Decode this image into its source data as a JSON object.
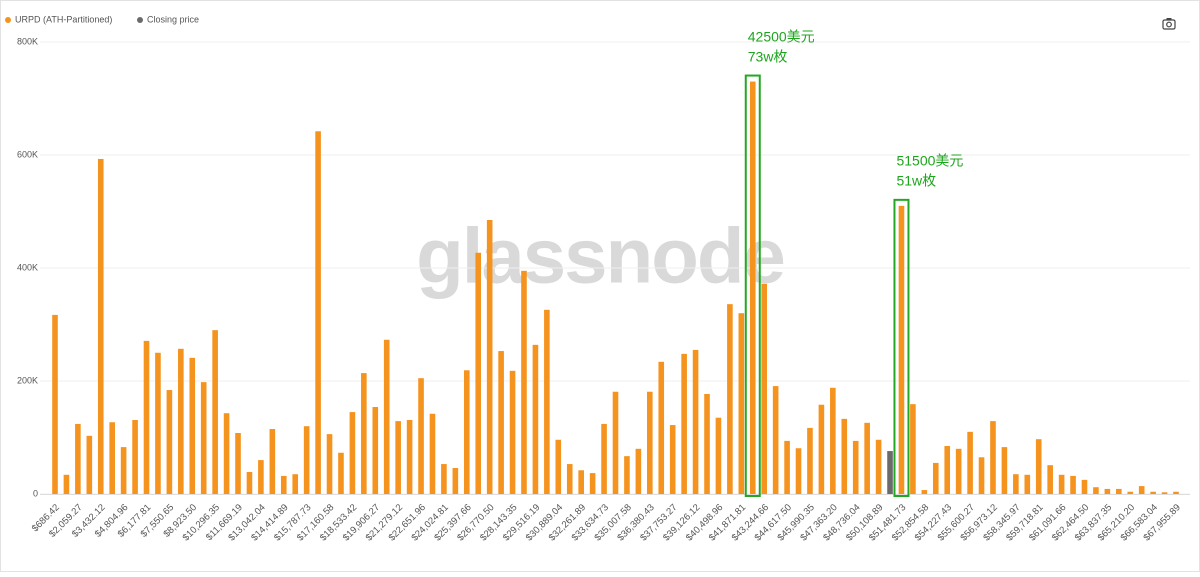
{
  "chart_data": {
    "type": "bar",
    "categories": [
      "$686.42",
      null,
      "$2,059.27",
      null,
      "$3,432.12",
      null,
      "$4,804.96",
      null,
      "$6,177.81",
      null,
      "$7,550.65",
      null,
      "$8,923.50",
      null,
      "$10,296.35",
      null,
      "$11,669.19",
      null,
      "$13,042.04",
      null,
      "$14,414.89",
      null,
      "$15,787.73",
      null,
      "$17,160.58",
      null,
      "$18,533.42",
      null,
      "$19,906.27",
      null,
      "$21,279.12",
      null,
      "$22,651.96",
      null,
      "$24,024.81",
      null,
      "$25,397.66",
      null,
      "$26,770.50",
      null,
      "$28,143.35",
      null,
      "$29,516.19",
      null,
      "$30,889.04",
      null,
      "$32,261.89",
      null,
      "$33,634.73",
      null,
      "$35,007.58",
      null,
      "$36,380.43",
      null,
      "$37,753.27",
      null,
      "$39,126.12",
      null,
      "$40,498.96",
      null,
      "$41,871.81",
      null,
      "$43,244.66",
      null,
      "$44,617.50",
      null,
      "$45,990.35",
      null,
      "$47,363.20",
      null,
      "$48,736.04",
      null,
      "$50,108.89",
      null,
      "$51,481.73",
      null,
      "$52,854.58",
      null,
      "$54,227.43",
      null,
      "$55,600.27",
      null,
      "$56,973.12",
      null,
      "$58,345.97",
      null,
      "$59,718.81",
      null,
      "$61,091.66",
      null,
      "$62,464.50",
      null,
      "$63,837.35",
      null,
      "$65,210.20",
      null,
      "$66,583.04",
      null,
      "$67,955.89"
    ],
    "series": [
      {
        "name": "URPD (ATH-Partitioned)",
        "color": "#f5931f",
        "values": [
          317000,
          34000,
          124000,
          103000,
          593000,
          127000,
          83000,
          131000,
          271000,
          250000,
          184000,
          257000,
          241000,
          198000,
          290000,
          143000,
          108000,
          39000,
          60000,
          115000,
          32000,
          35000,
          120000,
          642000,
          106000,
          73000,
          145000,
          214000,
          154000,
          273000,
          129000,
          131000,
          205000,
          142000,
          53000,
          46000,
          219000,
          427000,
          485000,
          253000,
          218000,
          395000,
          264000,
          326000,
          96000,
          53000,
          42000,
          37000,
          124000,
          181000,
          67000,
          80000,
          181000,
          234000,
          122000,
          248000,
          255000,
          177000,
          135000,
          336000,
          320000,
          730000,
          372000,
          191000,
          94000,
          81000,
          117000,
          158000,
          188000,
          133000,
          94000,
          126000,
          96000,
          null,
          510000,
          159000,
          7000,
          55000,
          85000,
          80000,
          110000,
          65000,
          129000,
          83000,
          35000,
          34000,
          97000,
          51000,
          34000,
          32000,
          25000,
          12000,
          9000,
          9000,
          4000,
          14000,
          4000,
          3000,
          4000
        ]
      },
      {
        "name": "Closing price",
        "color": "#6b6b6b",
        "values": [
          null,
          null,
          null,
          null,
          null,
          null,
          null,
          null,
          null,
          null,
          null,
          null,
          null,
          null,
          null,
          null,
          null,
          null,
          null,
          null,
          null,
          null,
          null,
          null,
          null,
          null,
          null,
          null,
          null,
          null,
          null,
          null,
          null,
          null,
          null,
          null,
          null,
          null,
          null,
          null,
          null,
          null,
          null,
          null,
          null,
          null,
          null,
          null,
          null,
          null,
          null,
          null,
          null,
          null,
          null,
          null,
          null,
          null,
          null,
          null,
          null,
          null,
          null,
          null,
          null,
          null,
          null,
          null,
          null,
          null,
          null,
          null,
          null,
          76000,
          null,
          null,
          null,
          null,
          null,
          null,
          null,
          null,
          null,
          null,
          null,
          null,
          null,
          null,
          null,
          null,
          null,
          null,
          null,
          null,
          null,
          null,
          null,
          null,
          null
        ]
      }
    ],
    "ylim": [
      0,
      800000
    ],
    "yticks": [
      0,
      {
        "value": 200000,
        "label": "200K"
      },
      {
        "value": 400000,
        "label": "400K"
      },
      {
        "value": 600000,
        "label": "600K"
      },
      {
        "value": 800000,
        "label": "800K"
      }
    ],
    "grid": true,
    "watermark": "glassnode",
    "annotations": [
      {
        "lines": [
          "42500美元",
          "73w枚"
        ]
      },
      {
        "lines": [
          "51500美元",
          "51w枚"
        ]
      }
    ]
  }
}
